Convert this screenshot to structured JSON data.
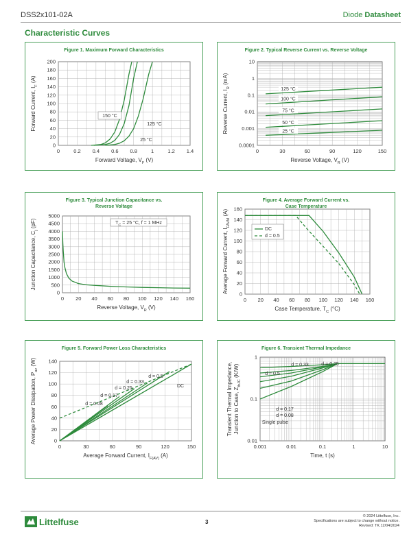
{
  "header": {
    "part_number": "DSS2x101-02A",
    "doc_type_prefix": "Diode",
    "doc_type": "Datasheet"
  },
  "section_title": "Characteristic Curves",
  "footer": {
    "page": "3",
    "copyright": "© 2024 Littelfuse, Inc.",
    "notice": "Specifications are subject to change without notice.",
    "revised": "Revised: TK.12/04/2024",
    "logo_text": "Littelfuse"
  },
  "colors": {
    "accent": "#2e8b3c",
    "grid": "#999999",
    "curve": "#2e8b3c"
  },
  "chart_data": [
    {
      "type": "line",
      "title": "Figure 1. Maximum Forward Characteristics",
      "xlabel": "Forward Voltage, V",
      "xlabel_sub": "F",
      "xlabel_unit": " (V)",
      "ylabel": "Forward Current, I",
      "ylabel_sub": "F",
      "ylabel_unit": " (A)",
      "xlim": [
        0,
        1.4
      ],
      "ylim": [
        0,
        200
      ],
      "xticks": [
        "0",
        "0.2",
        "0.4",
        "0.6",
        "0.8",
        "1",
        "1.2",
        "1.4"
      ],
      "yticks": [
        "0",
        "20",
        "40",
        "60",
        "80",
        "100",
        "120",
        "140",
        "160",
        "180",
        "200"
      ],
      "series": [
        {
          "name": "150 °C",
          "x": [
            0.35,
            0.45,
            0.5,
            0.55,
            0.6,
            0.65,
            0.7,
            0.75,
            0.78
          ],
          "y": [
            0,
            2,
            6,
            15,
            32,
            62,
            108,
            170,
            200
          ]
        },
        {
          "name": "125 °C",
          "x": [
            0.38,
            0.5,
            0.55,
            0.6,
            0.65,
            0.7,
            0.75,
            0.8,
            0.84
          ],
          "y": [
            0,
            2,
            5,
            12,
            26,
            52,
            95,
            160,
            200
          ]
        },
        {
          "name": "25 °C",
          "x": [
            0.5,
            0.6,
            0.65,
            0.7,
            0.75,
            0.8,
            0.85,
            0.9,
            0.96,
            1.0
          ],
          "y": [
            0,
            2,
            5,
            11,
            22,
            40,
            70,
            110,
            170,
            200
          ]
        }
      ],
      "annotations": [
        "150 °C",
        "125 °C",
        "25 °C"
      ]
    },
    {
      "type": "line",
      "title": "Figure 2. Typical Reverse Current vs. Reverse Voltage",
      "xlabel": "Reverse Voltage, V",
      "xlabel_sub": "R",
      "xlabel_unit": " (V)",
      "ylabel": "Reverse Current, I",
      "ylabel_sub": "R",
      "ylabel_unit": " (mA)",
      "yscale": "log",
      "xlim": [
        0,
        150
      ],
      "ylim": [
        0.0001,
        10
      ],
      "xticks": [
        "0",
        "30",
        "60",
        "90",
        "120",
        "150"
      ],
      "yticks": [
        "10",
        "1",
        "0.1",
        "0.01",
        "0.001",
        "0.0001"
      ],
      "series": [
        {
          "name": "125 °C",
          "x": [
            10,
            150
          ],
          "y": [
            0.12,
            0.3
          ]
        },
        {
          "name": "100 °C",
          "x": [
            10,
            150
          ],
          "y": [
            0.03,
            0.08
          ]
        },
        {
          "name": "75 °C",
          "x": [
            10,
            150
          ],
          "y": [
            0.006,
            0.015
          ]
        },
        {
          "name": "50 °C",
          "x": [
            10,
            150
          ],
          "y": [
            0.0012,
            0.003
          ]
        },
        {
          "name": "25 °C",
          "x": [
            10,
            150
          ],
          "y": [
            0.0004,
            0.0008
          ]
        }
      ],
      "annotations": [
        "125 °C",
        "100 °C",
        "75 °C",
        "50 °C",
        "25 °C"
      ]
    },
    {
      "type": "line",
      "title": "Figure 3. Typical Junction Capacitance vs.",
      "title2": "Reverse Voltage",
      "xlabel": "Reverse Voltage, V",
      "xlabel_sub": "R",
      "xlabel_unit": " (V)",
      "ylabel": "Junction Capacitance, C",
      "ylabel_sub": "j",
      "ylabel_unit": " (pF)",
      "xlim": [
        0,
        160
      ],
      "ylim": [
        0,
        5000
      ],
      "xticks": [
        "0",
        "20",
        "40",
        "60",
        "80",
        "100",
        "120",
        "140",
        "160"
      ],
      "yticks": [
        "0",
        "500",
        "1000",
        "1500",
        "2000",
        "2500",
        "3000",
        "3500",
        "4000",
        "4500",
        "5000"
      ],
      "series": [
        {
          "name": "",
          "x": [
            0,
            0.5,
            1,
            2,
            3,
            5,
            8,
            12,
            20,
            30,
            40,
            60,
            80,
            100,
            120,
            140,
            160
          ],
          "y": [
            4000,
            3200,
            2700,
            2000,
            1650,
            1250,
            950,
            760,
            600,
            520,
            480,
            420,
            380,
            350,
            330,
            310,
            300
          ]
        }
      ],
      "legend_note": "T",
      "legend_note_sub": "C",
      "legend_note_rest": " = 25 °C, f = 1 MHz"
    },
    {
      "type": "line",
      "title": "Figure 4. Average Forward Current vs.",
      "title2": "Case Temperature",
      "xlabel": "Case Temperature, T",
      "xlabel_sub": "C",
      "xlabel_unit": " (°C)",
      "ylabel": "Average Forward Current, I",
      "ylabel_sub": "FAVM",
      "ylabel_unit": " (A)",
      "xlim": [
        0,
        160
      ],
      "ylim": [
        0,
        160
      ],
      "xticks": [
        "0",
        "20",
        "40",
        "60",
        "80",
        "100",
        "120",
        "140",
        "160"
      ],
      "yticks": [
        "0",
        "20",
        "40",
        "60",
        "80",
        "100",
        "120",
        "140",
        "160"
      ],
      "series": [
        {
          "name": "DC",
          "style": "solid",
          "x": [
            0,
            82,
            100,
            120,
            140,
            150
          ],
          "y": [
            148,
            148,
            118,
            78,
            32,
            0
          ]
        },
        {
          "name": "d = 0.5",
          "style": "dashed",
          "x": [
            0,
            65,
            80,
            100,
            120,
            140,
            147
          ],
          "y": [
            148,
            148,
            122,
            90,
            58,
            18,
            0
          ]
        }
      ],
      "legend": [
        "DC",
        "d = 0.5"
      ]
    },
    {
      "type": "line",
      "title": "Figure 5. Forward Power Loss Characteristics",
      "xlabel": "Average Forward Current, I",
      "xlabel_sub": "F(AV)",
      "xlabel_unit": " (A)",
      "ylabel": "Average Power Dissipation, P",
      "ylabel_sub": "av",
      "ylabel_unit": " (W)",
      "xlim": [
        0,
        150
      ],
      "ylim": [
        0,
        140
      ],
      "xticks": [
        "0",
        "30",
        "60",
        "90",
        "120",
        "150"
      ],
      "yticks": [
        "0",
        "20",
        "40",
        "60",
        "80",
        "100",
        "120",
        "140"
      ],
      "series": [
        {
          "name": "DC",
          "style": "solid",
          "x": [
            0,
            150
          ],
          "y": [
            0,
            135
          ]
        },
        {
          "name": "d = 0.5",
          "style": "solid",
          "x": [
            0,
            125
          ],
          "y": [
            0,
            122
          ]
        },
        {
          "name": "d = 0.33",
          "style": "solid",
          "x": [
            0,
            100
          ],
          "y": [
            0,
            102
          ]
        },
        {
          "name": "d = 0.25",
          "style": "solid",
          "x": [
            0,
            85
          ],
          "y": [
            0,
            92
          ]
        },
        {
          "name": "d = 0.17",
          "style": "solid",
          "x": [
            0,
            68
          ],
          "y": [
            0,
            78
          ]
        },
        {
          "name": "d = 0.08",
          "style": "solid",
          "x": [
            0,
            55
          ],
          "y": [
            0,
            62
          ]
        },
        {
          "name": "",
          "style": "dashed",
          "x": [
            0,
            150
          ],
          "y": [
            40,
            135
          ]
        }
      ],
      "annotations": [
        "d = 0.5",
        "d = 0.33",
        "d = 0.25",
        "d = 0.17",
        "d = 0.08",
        "DC"
      ]
    },
    {
      "type": "line",
      "title": "Figure 6. Transient Thermal Impedance",
      "xlabel": "Time, t (s)",
      "ylabel": "Transient Thermal Impedance,",
      "ylabel2": "Junction to Case, Z",
      "ylabel2_sub": "thJC",
      "ylabel2_unit": " (K/W)",
      "xscale": "log",
      "yscale": "log",
      "xlim": [
        0.001,
        10
      ],
      "ylim": [
        0.01,
        1
      ],
      "xticks": [
        "0.001",
        "0.01",
        "0.1",
        "1",
        "10"
      ],
      "yticks": [
        "1",
        "0.1",
        "0.01"
      ],
      "series": [
        {
          "name": "d = 0.5",
          "x": [
            0.001,
            0.01,
            0.1,
            0.3,
            10
          ],
          "y": [
            0.56,
            0.6,
            0.66,
            0.7,
            0.7
          ]
        },
        {
          "name": "d = 0.33",
          "x": [
            0.001,
            0.01,
            0.1,
            0.3,
            10
          ],
          "y": [
            0.42,
            0.48,
            0.6,
            0.7,
            0.7
          ]
        },
        {
          "name": "d = 0.25",
          "x": [
            0.001,
            0.01,
            0.1,
            0.3,
            10
          ],
          "y": [
            0.34,
            0.42,
            0.58,
            0.7,
            0.7
          ]
        },
        {
          "name": "d = 0.17",
          "x": [
            0.001,
            0.01,
            0.1,
            0.3,
            10
          ],
          "y": [
            0.26,
            0.35,
            0.55,
            0.7,
            0.7
          ]
        },
        {
          "name": "d = 0.08",
          "x": [
            0.001,
            0.01,
            0.1,
            0.3,
            10
          ],
          "y": [
            0.18,
            0.27,
            0.5,
            0.7,
            0.7
          ]
        },
        {
          "name": "Single pulse",
          "x": [
            0.001,
            0.01,
            0.1,
            0.3,
            10
          ],
          "y": [
            0.1,
            0.2,
            0.45,
            0.7,
            0.7
          ]
        }
      ],
      "annotations": [
        "d = 0.33",
        "d = 0.25",
        "d = 0.5",
        "d = 0.17",
        "d = 0.08",
        "Single pulse"
      ]
    }
  ]
}
